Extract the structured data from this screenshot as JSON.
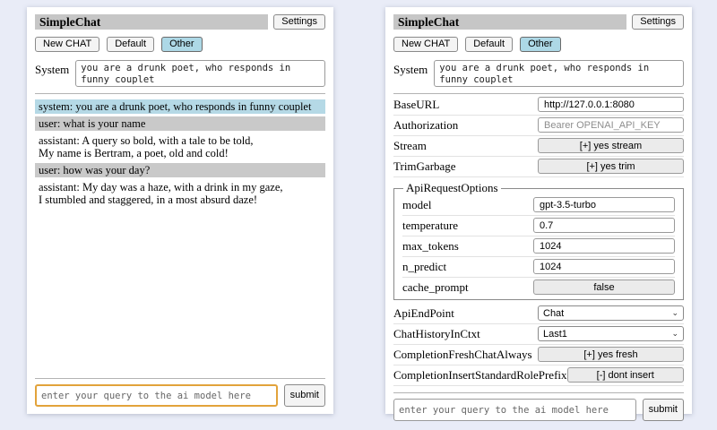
{
  "colors": {
    "page_bg": "#e9ecf7",
    "panel_bg": "#ffffff",
    "titlebar_bg": "#c6c6c6",
    "active_tab_bg": "#add8e6",
    "system_msg_bg": "#b5d9e6",
    "user_msg_bg": "#c9c9c9",
    "focused_input_border": "#e2a33b"
  },
  "shared": {
    "title": "SimpleChat",
    "settings_button": "Settings",
    "toolbar": {
      "new_chat": "New CHAT",
      "default_tab": "Default",
      "other_tab": "Other"
    },
    "system_label": "System",
    "system_prompt": "you are a drunk poet, who responds in funny couplet",
    "query_placeholder": "enter your query to the ai model here",
    "submit_label": "submit"
  },
  "chat": {
    "messages": [
      {
        "role": "system",
        "text": "system: you are a drunk poet, who responds in funny couplet"
      },
      {
        "role": "user",
        "text": "user: what is your name"
      },
      {
        "role": "assistant",
        "text": "assistant: A query so bold, with a tale to be told,\nMy name is Bertram, a poet, old and cold!"
      },
      {
        "role": "user",
        "text": "user: how was your day?"
      },
      {
        "role": "assistant",
        "text": "assistant: My day was a haze, with a drink in my gaze,\nI stumbled and staggered, in a most absurd daze!"
      }
    ]
  },
  "settings": {
    "rows": [
      {
        "label": "BaseURL",
        "type": "input",
        "value": "http://127.0.0.1:8080"
      },
      {
        "label": "Authorization",
        "type": "input",
        "placeholder": "Bearer OPENAI_API_KEY"
      },
      {
        "label": "Stream",
        "type": "button",
        "value": "[+] yes stream"
      },
      {
        "label": "TrimGarbage",
        "type": "button",
        "value": "[+] yes trim"
      }
    ],
    "group": {
      "legend": "ApiRequestOptions",
      "rows": [
        {
          "label": "model",
          "type": "input",
          "value": "gpt-3.5-turbo"
        },
        {
          "label": "temperature",
          "type": "input",
          "value": "0.7"
        },
        {
          "label": "max_tokens",
          "type": "input",
          "value": "1024"
        },
        {
          "label": "n_predict",
          "type": "input",
          "value": "1024"
        },
        {
          "label": "cache_prompt",
          "type": "button",
          "value": "false"
        }
      ]
    },
    "rows_after": [
      {
        "label": "ApiEndPoint",
        "type": "select",
        "value": "Chat"
      },
      {
        "label": "ChatHistoryInCtxt",
        "type": "select",
        "value": "Last1"
      },
      {
        "label": "CompletionFreshChatAlways",
        "type": "button",
        "value": "[+] yes fresh"
      },
      {
        "label": "CompletionInsertStandardRolePrefix",
        "type": "button",
        "value": "[-] dont insert"
      }
    ]
  },
  "icons": {
    "chevron_down": "⌄"
  }
}
